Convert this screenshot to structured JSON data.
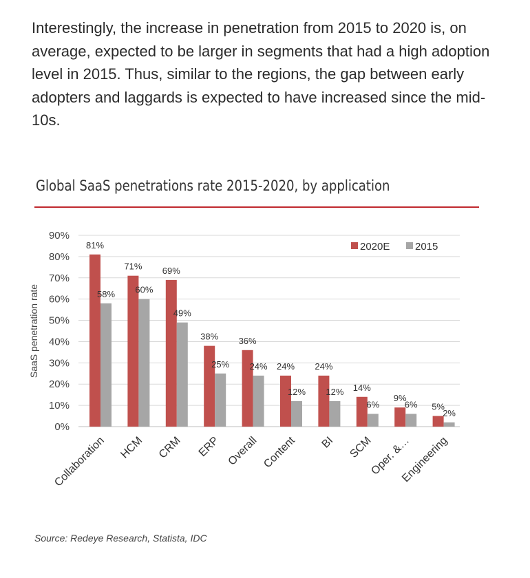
{
  "intro_text": "Interestingly, the increase in penetration from 2015 to 2020 is, on average, expected to be larger in segments that had a high adoption level in 2015. Thus, similar to the regions, the gap between early adopters and laggards is expected to have increased since the mid-10s.",
  "source_text": "Source: Redeye Research, Statista, IDC",
  "colors": {
    "accent": "#c0282d",
    "series_2020": "#c0504d",
    "series_2015": "#a6a6a6",
    "grid": "#d9d9d9"
  },
  "chart_data": {
    "type": "bar",
    "title": "Global SaaS penetrations rate 2015-2020, by application",
    "ylabel": "SaaS penetration rate",
    "xlabel": "",
    "ylim": [
      0,
      90
    ],
    "ytick_labels": [
      "0%",
      "10%",
      "20%",
      "30%",
      "40%",
      "50%",
      "60%",
      "70%",
      "80%",
      "90%"
    ],
    "grid": true,
    "legend_position": "top-right",
    "categories": [
      "Collaboration",
      "HCM",
      "CRM",
      "ERP",
      "Overall",
      "Content",
      "BI",
      "SCM",
      "Oper. &…",
      "Engineering"
    ],
    "series": [
      {
        "name": "2020E",
        "values": [
          81,
          71,
          69,
          38,
          36,
          24,
          24,
          14,
          9,
          5
        ],
        "labels": [
          "81%",
          "71%",
          "69%",
          "38%",
          "36%",
          "24%",
          "24%",
          "14%",
          "9%",
          "5%"
        ]
      },
      {
        "name": "2015",
        "values": [
          58,
          60,
          49,
          25,
          24,
          12,
          12,
          6,
          6,
          2
        ],
        "labels": [
          "58%",
          "60%",
          "49%",
          "25%",
          "24%",
          "12%",
          "12%",
          "6%",
          "6%",
          "2%"
        ]
      }
    ]
  }
}
